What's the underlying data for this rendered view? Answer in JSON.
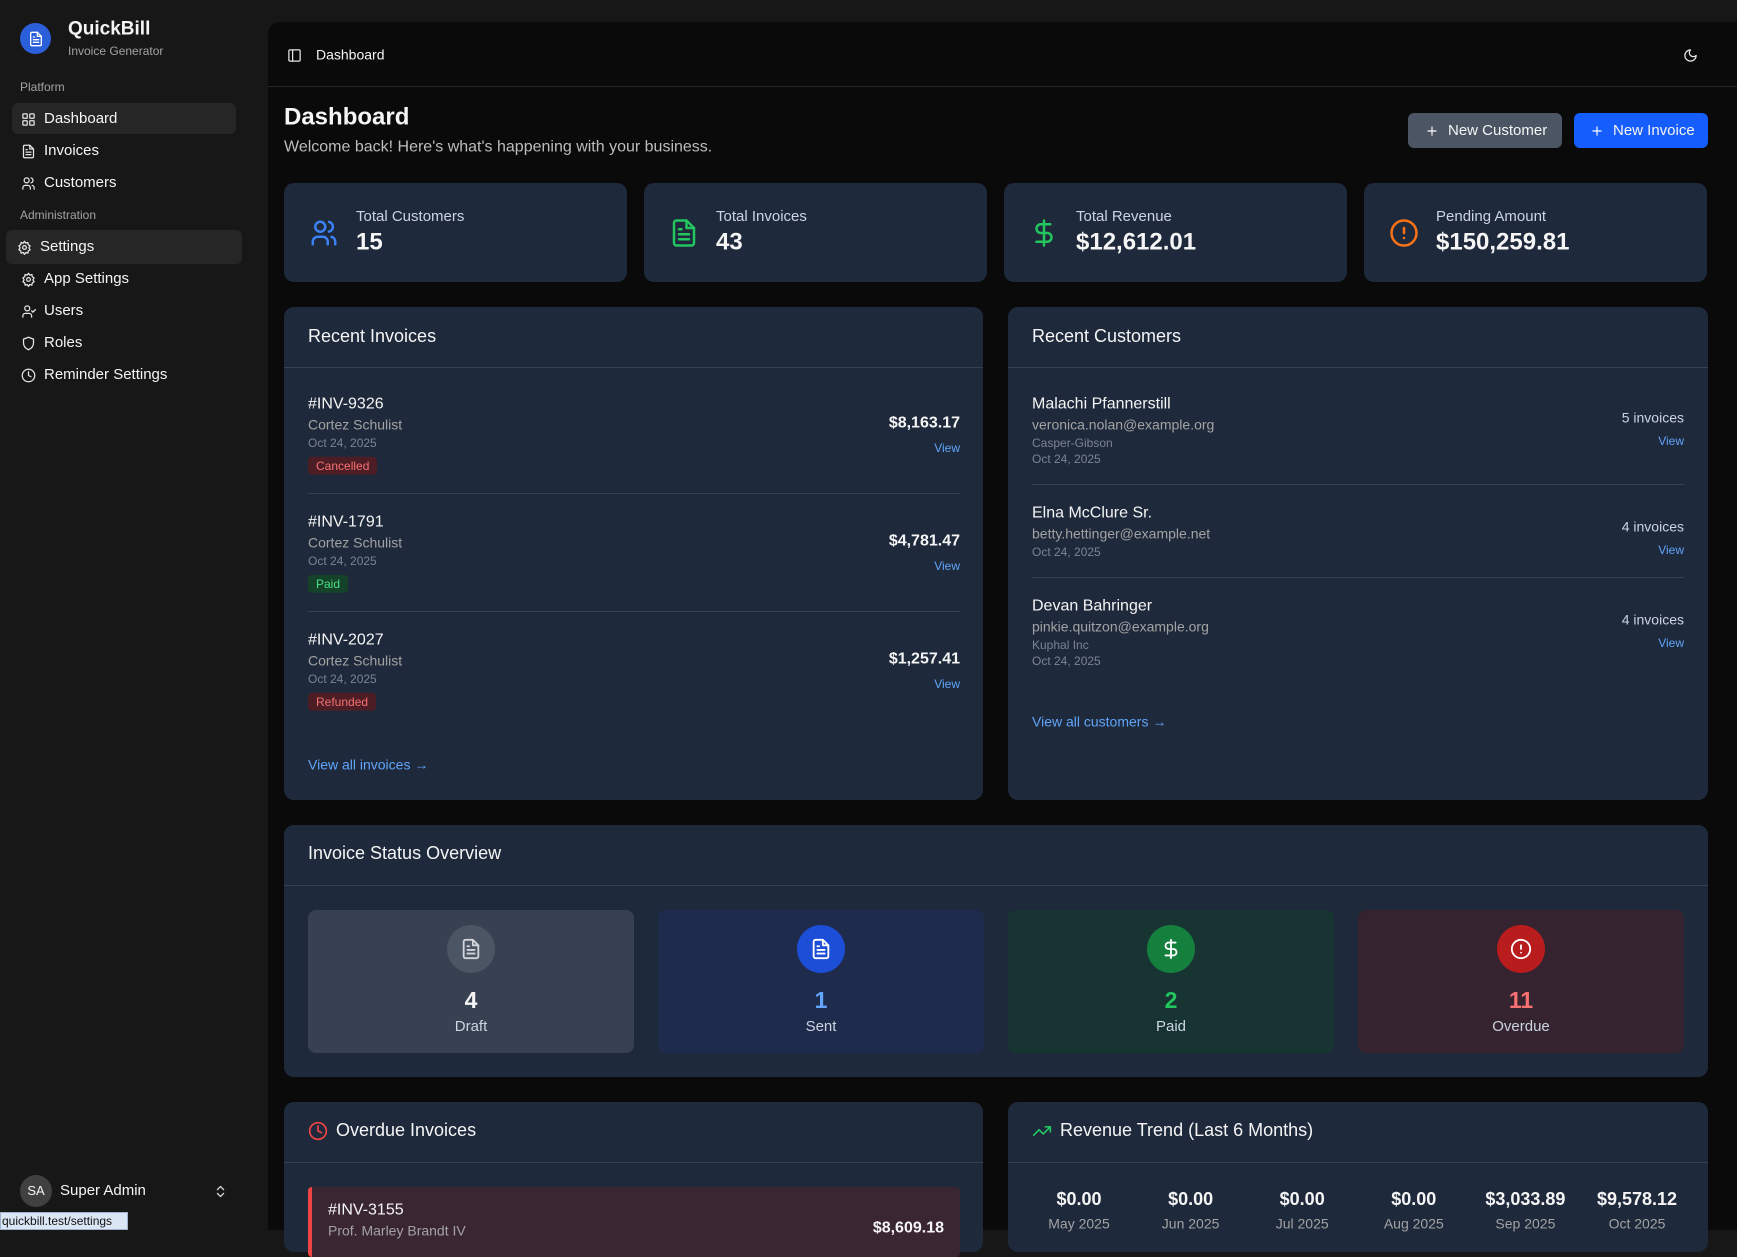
{
  "sidebar": {
    "app_name": "QuickBill",
    "app_subtitle": "Invoice Generator",
    "sections": [
      {
        "title": "Platform",
        "items": [
          "Dashboard",
          "Invoices",
          "Customers"
        ]
      },
      {
        "title": "Administration",
        "items": [
          "Settings",
          "App Settings",
          "Users",
          "Roles",
          "Reminder Settings"
        ]
      }
    ],
    "user": {
      "initials": "SA",
      "name": "Super Admin"
    },
    "status_url": "quickbill.test/settings"
  },
  "topbar": {
    "breadcrumb": "Dashboard"
  },
  "header": {
    "title": "Dashboard",
    "subtitle": "Welcome back! Here's what's happening with your business.",
    "buttons": [
      "New Customer",
      "New Invoice"
    ]
  },
  "stats": [
    {
      "label": "Total Customers",
      "value": 15
    },
    {
      "label": "Total Invoices",
      "value": 43
    },
    {
      "label": "Total Revenue",
      "value": "$12,612.01"
    },
    {
      "label": "Pending Amount",
      "value": "$150,259.81"
    }
  ],
  "recent_invoices": {
    "title": "Recent Invoices",
    "items": [
      {
        "number": "#INV-9326",
        "customer": "Cortez Schulist",
        "date": "Oct 24, 2025",
        "status": "Cancelled",
        "amount": "$8,163.17",
        "action": "View"
      },
      {
        "number": "#INV-1791",
        "customer": "Cortez Schulist",
        "date": "Oct 24, 2025",
        "status": "Paid",
        "amount": "$4,781.47",
        "action": "View"
      },
      {
        "number": "#INV-2027",
        "customer": "Cortez Schulist",
        "date": "Oct 24, 2025",
        "status": "Refunded",
        "amount": "$1,257.41",
        "action": "View"
      }
    ],
    "link": "View all invoices →"
  },
  "recent_customers": {
    "title": "Recent Customers",
    "items": [
      {
        "name": "Malachi Pfannerstill",
        "email": "veronica.nolan@example.org",
        "company": "Casper-Gibson",
        "date": "Oct 24, 2025",
        "invoices": "5 invoices",
        "action": "View"
      },
      {
        "name": "Elna McClure Sr.",
        "email": "betty.hettinger@example.net",
        "date": "Oct 24, 2025",
        "invoices": "4 invoices",
        "action": "View"
      },
      {
        "name": "Devan Bahringer",
        "email": "pinkie.quitzon@example.org",
        "company": "Kuphal Inc",
        "date": "Oct 24, 2025",
        "invoices": "4 invoices",
        "action": "View"
      }
    ],
    "link": "View all customers →"
  },
  "status_overview": {
    "title": "Invoice Status Overview",
    "items": [
      {
        "count": 4,
        "label": "Draft"
      },
      {
        "count": 1,
        "label": "Sent"
      },
      {
        "count": 2,
        "label": "Paid"
      },
      {
        "count": 11,
        "label": "Overdue"
      }
    ]
  },
  "overdue": {
    "title": "Overdue Invoices",
    "items": [
      {
        "number": "#INV-3155",
        "customer": "Prof. Marley Brandt IV",
        "amount": "$8,609.18"
      }
    ]
  },
  "revenue_trend": {
    "title": "Revenue Trend (Last 6 Months)",
    "months": [
      {
        "amount": "$0.00",
        "month": "May 2025"
      },
      {
        "amount": "$0.00",
        "month": "Jun 2025"
      },
      {
        "amount": "$0.00",
        "month": "Jul 2025"
      },
      {
        "amount": "$0.00",
        "month": "Aug 2025"
      },
      {
        "amount": "$3,033.89",
        "month": "Sep 2025"
      },
      {
        "amount": "$9,578.12",
        "month": "Oct 2025"
      }
    ]
  }
}
